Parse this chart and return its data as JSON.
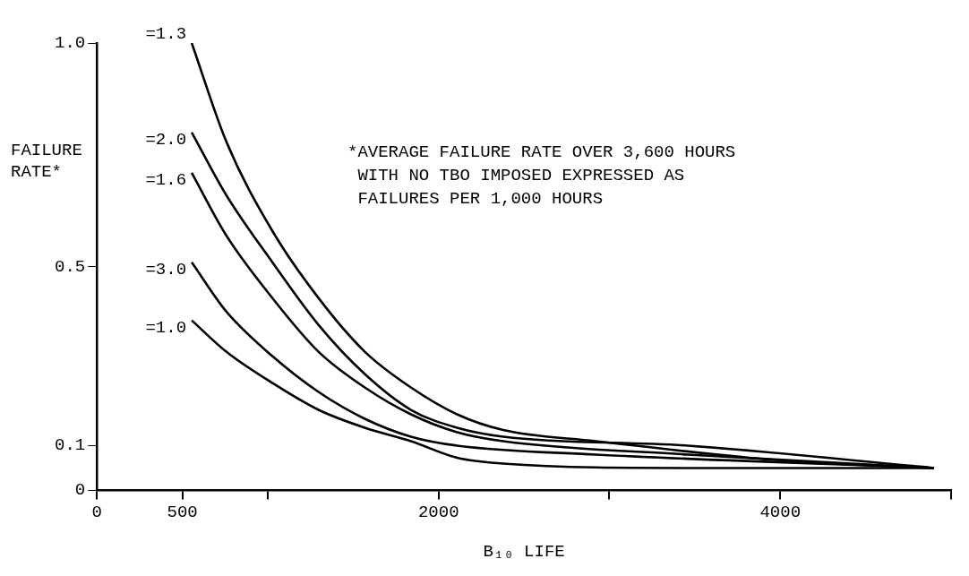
{
  "chart_data": {
    "type": "line",
    "xlabel": "B₁₀ LIFE",
    "ylabel": "FAILURE RATE*",
    "annotations": [
      "*AVERAGE FAILURE RATE OVER 3,600 HOURS\n WITH NO TBO IMPOSED EXPRESSED AS\n FAILURES PER 1,000 HOURS"
    ],
    "xlim": [
      0,
      5000
    ],
    "xticks": [
      0,
      500,
      {
        "value": 1000,
        "label": null
      },
      2000,
      {
        "value": 3000,
        "label": null
      },
      4000,
      {
        "value": 5000,
        "label": null
      }
    ],
    "ylim": [
      0,
      1.0
    ],
    "yticks": [
      0,
      0.1,
      0.5,
      {
        "value": 1,
        "label": "1.0"
      }
    ],
    "grid": false,
    "legend": false,
    "marker": "none",
    "line_style": "solid",
    "series": [
      {
        "name": "=1.3",
        "color": "#000000",
        "x": [
          555,
          757,
          1027,
          1297,
          1568,
          1838,
          2108,
          2378,
          2919,
          4000,
          4900
        ],
        "values": [
          1.0,
          0.78,
          0.58,
          0.43,
          0.31,
          0.23,
          0.17,
          0.135,
          0.11,
          0.067,
          0.05
        ]
      },
      {
        "name": "=2.0",
        "color": "#000000",
        "x": [
          555,
          757,
          1027,
          1297,
          1568,
          1838,
          2108,
          2378,
          3459,
          4900
        ],
        "values": [
          0.8,
          0.66,
          0.51,
          0.37,
          0.26,
          0.18,
          0.14,
          0.12,
          0.1,
          0.05
        ]
      },
      {
        "name": "=1.6",
        "color": "#000000",
        "x": [
          555,
          757,
          1027,
          1297,
          1568,
          1838,
          2108,
          2378,
          3459,
          4900
        ],
        "values": [
          0.71,
          0.57,
          0.43,
          0.31,
          0.23,
          0.17,
          0.13,
          0.11,
          0.08,
          0.05
        ]
      },
      {
        "name": "=3.0",
        "color": "#000000",
        "x": [
          555,
          757,
          1027,
          1297,
          1568,
          1838,
          2108,
          2919,
          4900
        ],
        "values": [
          0.51,
          0.4,
          0.3,
          0.22,
          0.16,
          0.12,
          0.1,
          0.08,
          0.05
        ]
      },
      {
        "name": "=1.0",
        "color": "#000000",
        "x": [
          555,
          757,
          1027,
          1297,
          1568,
          1838,
          2108,
          2378,
          3459,
          4900
        ],
        "values": [
          0.38,
          0.31,
          0.24,
          0.18,
          0.14,
          0.11,
          0.073,
          0.06,
          0.05,
          0.05
        ]
      }
    ]
  }
}
